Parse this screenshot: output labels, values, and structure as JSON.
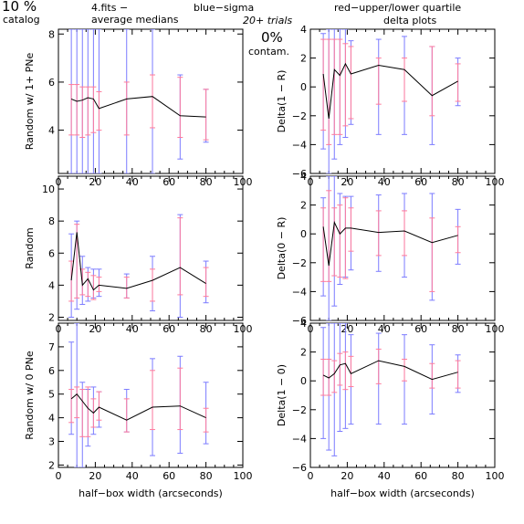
{
  "header": {
    "percent": "10 %",
    "catalog": "catalog",
    "filename": "4.fits   −",
    "average_medians": "average medians",
    "blue_sigma": "blue−sigma",
    "red_quartile": "red−upper/lower quartile",
    "trials": "20+ trials",
    "delta_plots": "delta plots",
    "contam_percent": "0%",
    "contam_label": "contam."
  },
  "colors": {
    "sigma": "#7b7bff",
    "quartile": "#ff7b9c",
    "median": "#000000"
  },
  "chart_data": [
    {
      "type": "line",
      "panel": "top-left",
      "ylabel": "Random w/ 1+ PNe",
      "xlabel": "",
      "xlim": [
        0,
        100
      ],
      "ylim": [
        2.2,
        8.2
      ],
      "xticks": [
        0,
        20,
        40,
        60,
        80,
        100
      ],
      "yticks": [
        4,
        6,
        8
      ],
      "x": [
        7,
        10,
        13,
        16,
        19,
        22,
        37,
        51,
        66,
        80
      ],
      "y": [
        5.3,
        5.2,
        5.25,
        5.35,
        5.3,
        4.9,
        5.3,
        5.4,
        4.6,
        4.55
      ],
      "sigma_low": [
        2.2,
        2.2,
        2.2,
        2.2,
        2.2,
        2.2,
        2.2,
        2.2,
        2.8,
        3.5
      ],
      "sigma_high": [
        8.2,
        8.2,
        8.2,
        8.2,
        8.2,
        8.2,
        8.2,
        8.2,
        6.3,
        5.7
      ],
      "q_low": [
        3.8,
        3.8,
        3.7,
        3.8,
        3.9,
        4.0,
        3.8,
        4.1,
        3.7,
        3.6
      ],
      "q_high": [
        5.9,
        5.9,
        5.8,
        5.8,
        5.8,
        5.6,
        6.0,
        6.3,
        6.2,
        5.7
      ]
    },
    {
      "type": "line",
      "panel": "middle-left",
      "ylabel": "Random",
      "xlabel": "",
      "xlim": [
        0,
        100
      ],
      "ylim": [
        1.8,
        10.8
      ],
      "xticks": [
        0,
        20,
        40,
        60,
        80,
        100
      ],
      "yticks": [
        2,
        4,
        6,
        8,
        10
      ],
      "ytick_labels": [
        "2",
        "4",
        "6",
        "8",
        "10"
      ],
      "x": [
        7,
        10,
        13,
        16,
        19,
        22,
        37,
        51,
        66,
        80
      ],
      "y": [
        4.3,
        7.3,
        4.0,
        4.4,
        3.7,
        4.0,
        3.8,
        4.3,
        5.1,
        4.1
      ],
      "sigma_low": [
        2.0,
        2.5,
        2.8,
        3.0,
        3.2,
        3.3,
        3.2,
        2.4,
        2.0,
        2.9
      ],
      "sigma_high": [
        7.2,
        8.0,
        5.8,
        5.1,
        5.0,
        5.0,
        4.7,
        5.8,
        8.4,
        5.5
      ],
      "q_low": [
        3.0,
        3.2,
        3.4,
        3.3,
        3.1,
        3.6,
        3.2,
        3.0,
        3.4,
        3.3
      ],
      "q_high": [
        5.5,
        7.8,
        5.0,
        4.8,
        4.6,
        4.5,
        4.5,
        5.0,
        8.2,
        5.1
      ]
    },
    {
      "type": "line",
      "panel": "bottom-left",
      "ylabel": "Random w/ 0 PNe",
      "xlabel": "half−box width (arcseconds)",
      "xlim": [
        0,
        100
      ],
      "ylim": [
        1.9,
        8.0
      ],
      "xticks": [
        0,
        20,
        40,
        60,
        80,
        100
      ],
      "yticks": [
        2,
        3,
        4,
        5,
        6,
        7
      ],
      "x": [
        7,
        10,
        13,
        16,
        19,
        22,
        37,
        51,
        66,
        80
      ],
      "y": [
        4.8,
        5.0,
        4.7,
        4.4,
        4.2,
        4.45,
        3.9,
        4.45,
        4.5,
        4.0
      ],
      "sigma_low": [
        3.3,
        1.9,
        1.9,
        2.8,
        3.3,
        3.6,
        3.4,
        2.4,
        2.5,
        2.9
      ],
      "sigma_high": [
        7.2,
        8.0,
        5.5,
        5.2,
        5.3,
        5.1,
        5.2,
        6.5,
        6.6,
        5.5
      ],
      "q_low": [
        3.8,
        4.0,
        3.2,
        3.2,
        3.6,
        3.9,
        3.4,
        3.5,
        3.5,
        3.4
      ],
      "q_high": [
        5.2,
        5.3,
        5.2,
        5.3,
        4.8,
        5.1,
        4.8,
        6.0,
        6.1,
        4.4
      ]
    },
    {
      "type": "line",
      "panel": "top-right",
      "ylabel": "Delta(1 − R)",
      "xlabel": "",
      "xlim": [
        0,
        100
      ],
      "ylim": [
        -6,
        4
      ],
      "xticks": [
        0,
        20,
        40,
        60,
        80,
        100
      ],
      "yticks": [
        -6,
        -4,
        -2,
        0,
        2,
        4
      ],
      "x": [
        7,
        10,
        13,
        16,
        19,
        22,
        37,
        51,
        66,
        80
      ],
      "y": [
        0.9,
        -2.2,
        1.2,
        0.8,
        1.6,
        0.9,
        1.5,
        1.2,
        -0.6,
        0.4
      ],
      "sigma_low": [
        -4.3,
        -6.0,
        -5.0,
        -4.0,
        -3.5,
        -2.6,
        -3.3,
        -3.3,
        -4.0,
        -1.3
      ],
      "sigma_high": [
        3.7,
        4.0,
        4.0,
        4.0,
        4.0,
        3.2,
        3.3,
        3.5,
        2.8,
        2.0
      ],
      "q_low": [
        -3.0,
        -4.0,
        -3.3,
        -3.3,
        -2.7,
        -2.2,
        -1.2,
        -1.0,
        -2.0,
        -1.0
      ],
      "q_high": [
        3.3,
        3.3,
        3.3,
        3.3,
        3.0,
        2.8,
        2.0,
        2.0,
        2.8,
        1.6
      ]
    },
    {
      "type": "line",
      "panel": "middle-right",
      "ylabel": "Delta(0 − R)",
      "xlabel": "",
      "xlim": [
        0,
        100
      ],
      "ylim": [
        -6,
        4
      ],
      "xticks": [
        0,
        20,
        40,
        60,
        80,
        100
      ],
      "yticks": [
        -6,
        -4,
        -2,
        0,
        2,
        4
      ],
      "x": [
        7,
        10,
        13,
        16,
        19,
        22,
        37,
        51,
        66,
        80
      ],
      "y": [
        0.5,
        -2.2,
        0.8,
        0.0,
        0.4,
        0.4,
        0.1,
        0.2,
        -0.6,
        -0.1
      ],
      "sigma_low": [
        -4.3,
        -6.0,
        -5.0,
        -3.5,
        -3.0,
        -2.5,
        -2.6,
        -3.0,
        -4.6,
        -2.1
      ],
      "sigma_high": [
        2.5,
        4.0,
        4.0,
        2.8,
        2.6,
        2.6,
        2.7,
        2.8,
        2.8,
        1.7
      ],
      "q_low": [
        -3.3,
        -3.3,
        -2.9,
        -3.0,
        -3.1,
        -1.2,
        -1.5,
        -1.5,
        -4.0,
        -1.3
      ],
      "q_high": [
        1.8,
        3.0,
        1.8,
        2.0,
        2.5,
        1.8,
        1.6,
        1.6,
        1.1,
        0.5
      ]
    },
    {
      "type": "line",
      "panel": "bottom-right",
      "ylabel": "Delta(1 − 0)",
      "xlabel": "half−box width (arcseconds)",
      "xlim": [
        0,
        100
      ],
      "ylim": [
        -6,
        4
      ],
      "xticks": [
        0,
        20,
        40,
        60,
        80,
        100
      ],
      "yticks": [
        -6,
        -4,
        -2,
        0,
        2,
        4
      ],
      "x": [
        7,
        10,
        13,
        16,
        19,
        22,
        37,
        51,
        66,
        80
      ],
      "y": [
        0.4,
        0.2,
        0.5,
        1.1,
        1.2,
        0.5,
        1.4,
        1.0,
        0.1,
        0.6
      ],
      "sigma_low": [
        -4.0,
        -4.8,
        -5.2,
        -3.5,
        -3.3,
        -3.0,
        -3.0,
        -3.0,
        -2.3,
        -0.8
      ],
      "sigma_high": [
        3.7,
        4.0,
        4.0,
        4.0,
        4.0,
        3.2,
        3.3,
        3.2,
        2.5,
        1.8
      ],
      "q_low": [
        -1.0,
        -1.0,
        -0.8,
        -0.3,
        -0.6,
        -0.4,
        -0.2,
        0.0,
        -0.5,
        -0.5
      ],
      "q_high": [
        1.5,
        1.5,
        1.4,
        1.9,
        2.0,
        1.7,
        2.2,
        1.5,
        1.2,
        1.4
      ]
    }
  ]
}
